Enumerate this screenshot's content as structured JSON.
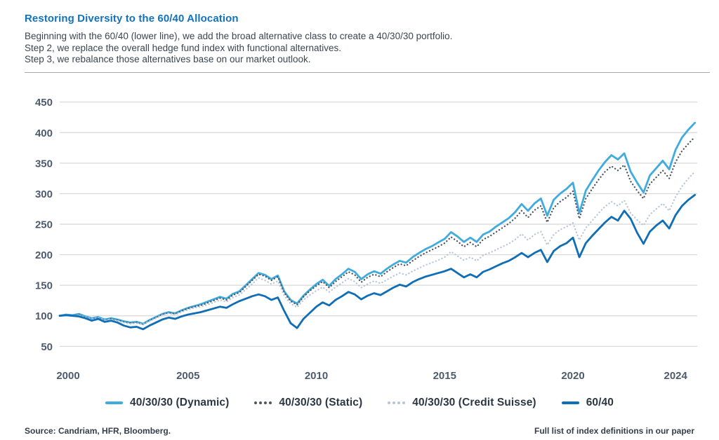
{
  "header": {
    "title": "Restoring Diversity to the 60/40 Allocation",
    "description_lines": [
      "Beginning with the 60/40 (lower line), we add the broad alternative class to create a 40/30/30 portfolio.",
      "Step 2, we replace the overall hedge fund index with functional alternatives.",
      "Step 3, we rebalance those alternatives base on our market outlook."
    ]
  },
  "footer": {
    "source": "Source: Candriam, HFR, Bloomberg.",
    "note": "Full list of index definitions in our paper"
  },
  "colors": {
    "title": "#1273bc",
    "text": "#3b4551",
    "tick": "#4e5b6e",
    "grid": "#d8d8d8",
    "separator": "#a8a8a8"
  },
  "chart_data": {
    "type": "line",
    "x_start": 2000,
    "x_step": 0.25,
    "xlim": [
      2000,
      2024.75
    ],
    "ylim": [
      50,
      450
    ],
    "xticks": [
      2000,
      2005,
      2010,
      2015,
      2020,
      2024
    ],
    "yticks": [
      50,
      100,
      150,
      200,
      250,
      300,
      350,
      400,
      450
    ],
    "grid": "horizontal",
    "legend_position": "bottom",
    "base_value_2000": 100,
    "series": [
      {
        "name": "40/30/30 (Dynamic)",
        "color": "#3fabdf",
        "style": "solid",
        "values": [
          100,
          102,
          101,
          103,
          99,
          96,
          98,
          94,
          96,
          94,
          91,
          89,
          90,
          87,
          93,
          98,
          103,
          106,
          104,
          109,
          113,
          116,
          119,
          123,
          127,
          131,
          128,
          136,
          140,
          150,
          160,
          170,
          167,
          160,
          166,
          140,
          126,
          120,
          133,
          143,
          152,
          159,
          149,
          160,
          168,
          177,
          172,
          160,
          168,
          173,
          169,
          177,
          184,
          190,
          187,
          196,
          203,
          209,
          214,
          220,
          226,
          237,
          230,
          221,
          228,
          221,
          233,
          238,
          246,
          253,
          260,
          270,
          283,
          272,
          284,
          292,
          264,
          290,
          300,
          308,
          318,
          268,
          305,
          322,
          338,
          352,
          363,
          356,
          366,
          336,
          318,
          302,
          330,
          342,
          354,
          340,
          372,
          392,
          405,
          416
        ]
      },
      {
        "name": "40/30/30 (Static)",
        "color": "#4e565f",
        "style": "dotted",
        "values": [
          100,
          101,
          100,
          102,
          98,
          95,
          97,
          93,
          95,
          93,
          90,
          88,
          89,
          86,
          92,
          97,
          102,
          105,
          103,
          108,
          112,
          115,
          117,
          121,
          125,
          129,
          126,
          134,
          138,
          148,
          158,
          168,
          165,
          158,
          164,
          138,
          124,
          118,
          131,
          141,
          149,
          156,
          146,
          156,
          164,
          172,
          167,
          155,
          163,
          168,
          164,
          172,
          179,
          185,
          182,
          190,
          197,
          203,
          208,
          213,
          219,
          229,
          222,
          213,
          220,
          213,
          225,
          230,
          237,
          244,
          251,
          260,
          272,
          261,
          273,
          280,
          253,
          277,
          287,
          294,
          304,
          259,
          292,
          308,
          323,
          336,
          345,
          338,
          347,
          320,
          305,
          292,
          316,
          327,
          338,
          325,
          352,
          370,
          382,
          393
        ]
      },
      {
        "name": "40/30/30 (Credit Suisse)",
        "color": "#b7c5da",
        "style": "dotted",
        "values": [
          100,
          101,
          100,
          101,
          98,
          95,
          97,
          93,
          94,
          92,
          89,
          87,
          88,
          86,
          91,
          96,
          101,
          104,
          102,
          106,
          110,
          113,
          115,
          118,
          122,
          126,
          123,
          130,
          134,
          143,
          152,
          162,
          158,
          152,
          157,
          133,
          120,
          114,
          126,
          134,
          141,
          147,
          139,
          147,
          154,
          161,
          156,
          146,
          152,
          157,
          153,
          159,
          165,
          170,
          167,
          173,
          178,
          183,
          187,
          191,
          196,
          205,
          198,
          191,
          196,
          190,
          199,
          203,
          208,
          213,
          218,
          225,
          234,
          224,
          233,
          238,
          216,
          233,
          241,
          246,
          252,
          224,
          244,
          256,
          268,
          279,
          287,
          280,
          289,
          268,
          257,
          248,
          266,
          275,
          284,
          272,
          295,
          312,
          325,
          336
        ]
      },
      {
        "name": "60/40",
        "color": "#0f6eb5",
        "style": "solid",
        "values": [
          100,
          101,
          100,
          99,
          96,
          92,
          95,
          90,
          92,
          89,
          84,
          81,
          82,
          78,
          84,
          89,
          94,
          97,
          95,
          99,
          102,
          104,
          106,
          109,
          112,
          115,
          113,
          119,
          124,
          128,
          132,
          135,
          132,
          126,
          130,
          108,
          88,
          80,
          95,
          105,
          115,
          122,
          117,
          126,
          132,
          139,
          135,
          127,
          133,
          137,
          134,
          140,
          146,
          151,
          148,
          155,
          160,
          164,
          167,
          170,
          173,
          177,
          170,
          163,
          168,
          163,
          172,
          176,
          181,
          186,
          190,
          196,
          203,
          196,
          203,
          208,
          188,
          206,
          214,
          219,
          228,
          196,
          219,
          231,
          242,
          253,
          262,
          256,
          272,
          259,
          236,
          218,
          238,
          248,
          256,
          243,
          265,
          280,
          290,
          298
        ]
      }
    ]
  }
}
